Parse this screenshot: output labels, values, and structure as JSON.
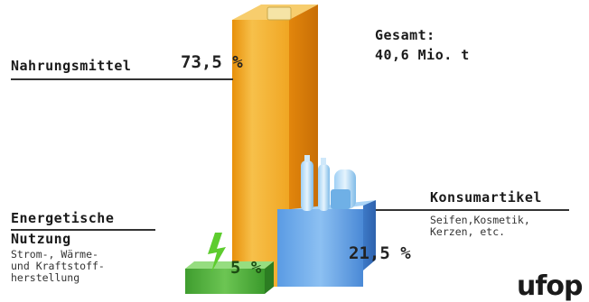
{
  "total": {
    "label": "Gesamt:",
    "value": "40,6 Mio. t"
  },
  "categories": {
    "food": {
      "label": "Nahrungsmittel",
      "percent": "73,5 %"
    },
    "consumer": {
      "label": "Konsumartikel",
      "sub": [
        "Seifen,Kosmetik,",
        "Kerzen, etc."
      ],
      "percent": "21,5 %"
    },
    "energy": {
      "label": [
        "Energetische",
        "Nutzung"
      ],
      "sub": [
        "Strom-, Wärme-",
        "und Kraftstoff-",
        "herstellung"
      ],
      "percent": "5 %"
    }
  },
  "logo": {
    "text": "ufop"
  },
  "colors": {
    "food": "#f0a820",
    "consumer": "#5b9be0",
    "energy": "#4caf3a",
    "accent": "#2e8b2e"
  },
  "chart_data": {
    "type": "bar",
    "categories": [
      "Nahrungsmittel",
      "Konsumartikel",
      "Energetische Nutzung"
    ],
    "values": [
      73.5,
      21.5,
      5
    ],
    "unit": "%",
    "title": "Gesamt: 40,6 Mio. t"
  }
}
